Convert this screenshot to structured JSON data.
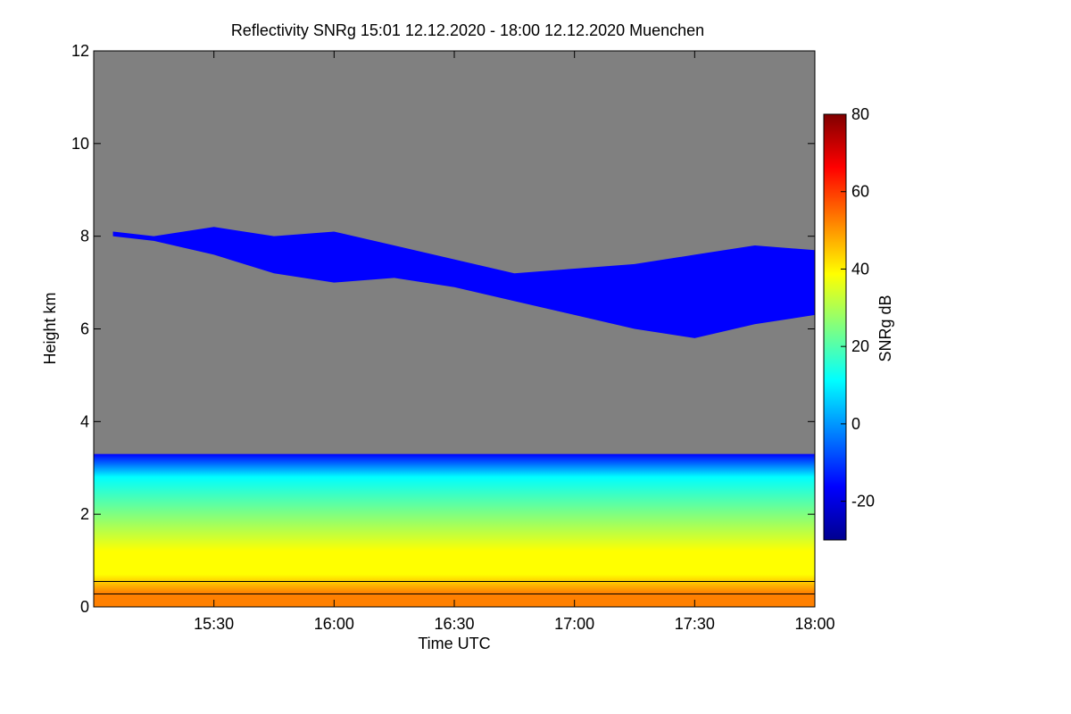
{
  "chart_data": {
    "type": "heatmap",
    "title": "Reflectivity SNRg   15:01 12.12.2020 - 18:00 12.12.2020 Muenchen",
    "xlabel": "Time UTC",
    "ylabel": "Height km",
    "colorbar_label": "SNRg dB",
    "x_range_hours": [
      15.0,
      18.0
    ],
    "x_ticks": [
      {
        "value": 15.5,
        "label": "15:30"
      },
      {
        "value": 16.0,
        "label": "16:00"
      },
      {
        "value": 16.5,
        "label": "16:30"
      },
      {
        "value": 17.0,
        "label": "17:00"
      },
      {
        "value": 17.5,
        "label": "17:30"
      },
      {
        "value": 18.0,
        "label": "18:00"
      }
    ],
    "ylim": [
      0,
      12
    ],
    "y_ticks": [
      {
        "value": 0,
        "label": "0"
      },
      {
        "value": 2,
        "label": "2"
      },
      {
        "value": 4,
        "label": "4"
      },
      {
        "value": 6,
        "label": "6"
      },
      {
        "value": 8,
        "label": "8"
      },
      {
        "value": 10,
        "label": "10"
      },
      {
        "value": 12,
        "label": "12"
      }
    ],
    "colorbar_range": [
      -30,
      80
    ],
    "colorbar_ticks": [
      {
        "value": -20,
        "label": "-20"
      },
      {
        "value": 0,
        "label": "0"
      },
      {
        "value": 20,
        "label": "20"
      },
      {
        "value": 40,
        "label": "40"
      },
      {
        "value": 60,
        "label": "60"
      },
      {
        "value": 80,
        "label": "80"
      }
    ],
    "colors": {
      "no_signal": "#808080",
      "colormap": [
        "#00008f",
        "#0000ff",
        "#0080ff",
        "#00ffff",
        "#80ff80",
        "#ffff00",
        "#ff8000",
        "#ff0000",
        "#800000"
      ]
    },
    "features": {
      "upper_cloud_layer": {
        "time_hours": [
          15.08,
          15.25,
          15.5,
          15.75,
          16.0,
          16.25,
          16.5,
          16.75,
          17.0,
          17.25,
          17.5,
          17.75,
          18.0
        ],
        "top_km": [
          8.1,
          8.0,
          8.2,
          8.0,
          8.1,
          7.8,
          7.5,
          7.2,
          7.3,
          7.4,
          7.6,
          7.8,
          7.7
        ],
        "base_km": [
          8.0,
          7.9,
          7.6,
          7.2,
          7.0,
          7.1,
          6.9,
          6.6,
          6.3,
          6.0,
          5.8,
          6.1,
          6.3
        ],
        "snr_db": -12
      },
      "lower_cloud_layer": {
        "top_km": 3.3,
        "snr_profile_km": [
          0.0,
          0.3,
          0.7,
          1.2,
          2.0,
          2.8,
          3.3
        ],
        "snr_profile_db": [
          55,
          50,
          45,
          35,
          25,
          10,
          -10
        ]
      },
      "boundary_line_km": 0.55,
      "reference_line_km": 0.28
    }
  }
}
